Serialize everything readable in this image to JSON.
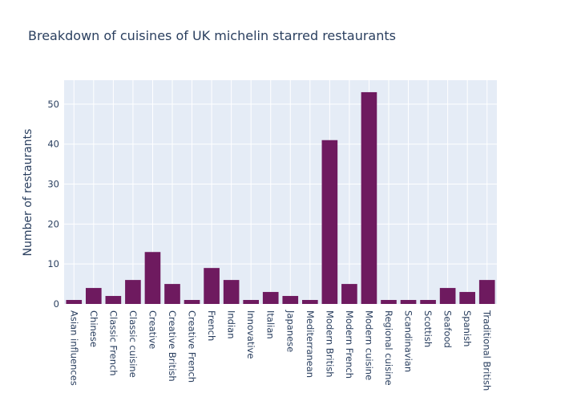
{
  "chart_data": {
    "type": "bar",
    "title": "Breakdown of cuisines of UK michelin starred restaurants",
    "xlabel": "",
    "ylabel": "Number of restaurants",
    "categories": [
      "Asian influences",
      "Chinese",
      "Classic French",
      "Classic cuisine",
      "Creative",
      "Creative British",
      "Creative French",
      "French",
      "Indian",
      "Innovative",
      "Italian",
      "Japanese",
      "Mediterranean",
      "Modern British",
      "Modern French",
      "Modern cuisine",
      "Regional cuisine",
      "Scandinavian",
      "Scottish",
      "Seafood",
      "Spanish",
      "Traditional British"
    ],
    "values": [
      1,
      4,
      2,
      6,
      13,
      5,
      1,
      9,
      6,
      1,
      3,
      2,
      1,
      41,
      5,
      53,
      1,
      1,
      1,
      4,
      3,
      6
    ],
    "ylim": [
      0,
      56
    ],
    "yticks": [
      0,
      10,
      20,
      30,
      40,
      50
    ],
    "grid": true,
    "legend": "none",
    "colors": {
      "bar": "#6e1a5f",
      "plot_bg": "#e5ecf6",
      "text": "#2a3f5f"
    }
  }
}
